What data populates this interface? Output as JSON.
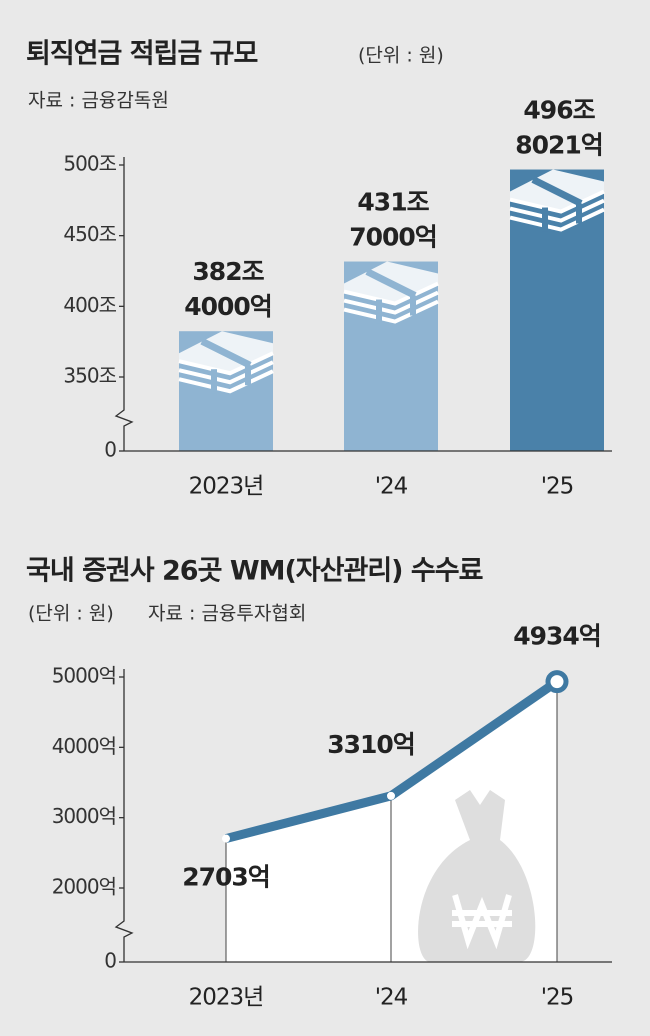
{
  "chart_data": [
    {
      "type": "bar",
      "title": "퇴직연금 적립금 규모",
      "unit_note": "(단위 : 원)",
      "source": "자료 : 금융감독원",
      "categories": [
        "2023년",
        "'24",
        "'25"
      ],
      "values": [
        382.4,
        431.7,
        496.8021
      ],
      "value_labels": [
        [
          "382조",
          "4000억"
        ],
        [
          "431조",
          "7000억"
        ],
        [
          "496조",
          "8021억"
        ]
      ],
      "colors": [
        "#8fb4d2",
        "#8fb4d2",
        "#4a81a9"
      ],
      "ylim": [
        0,
        500
      ],
      "yticks": [
        0,
        {
          "value": 350,
          "label": "350조"
        },
        {
          "value": 400,
          "label": "400조"
        },
        {
          "value": 450,
          "label": "450조"
        },
        {
          "value": 500,
          "label": "500조"
        }
      ],
      "axis_break": true
    },
    {
      "type": "line",
      "title": "국내 증권사 26곳 WM(자산관리) 수수료",
      "unit_note": "(단위 : 원)",
      "source": "자료 : 금융투자협회",
      "categories": [
        "2023년",
        "'24",
        "'25"
      ],
      "values": [
        2703,
        3310,
        4934
      ],
      "value_labels": [
        "2703억",
        "3310억",
        "4934억"
      ],
      "color": "#3f79a2",
      "ylim": [
        0,
        5000
      ],
      "yticks": [
        0,
        {
          "value": 2000,
          "label": "2000억"
        },
        {
          "value": 3000,
          "label": "3000억"
        },
        {
          "value": 4000,
          "label": "4000억"
        },
        {
          "value": 5000,
          "label": "5000억"
        }
      ],
      "axis_break": true
    }
  ]
}
